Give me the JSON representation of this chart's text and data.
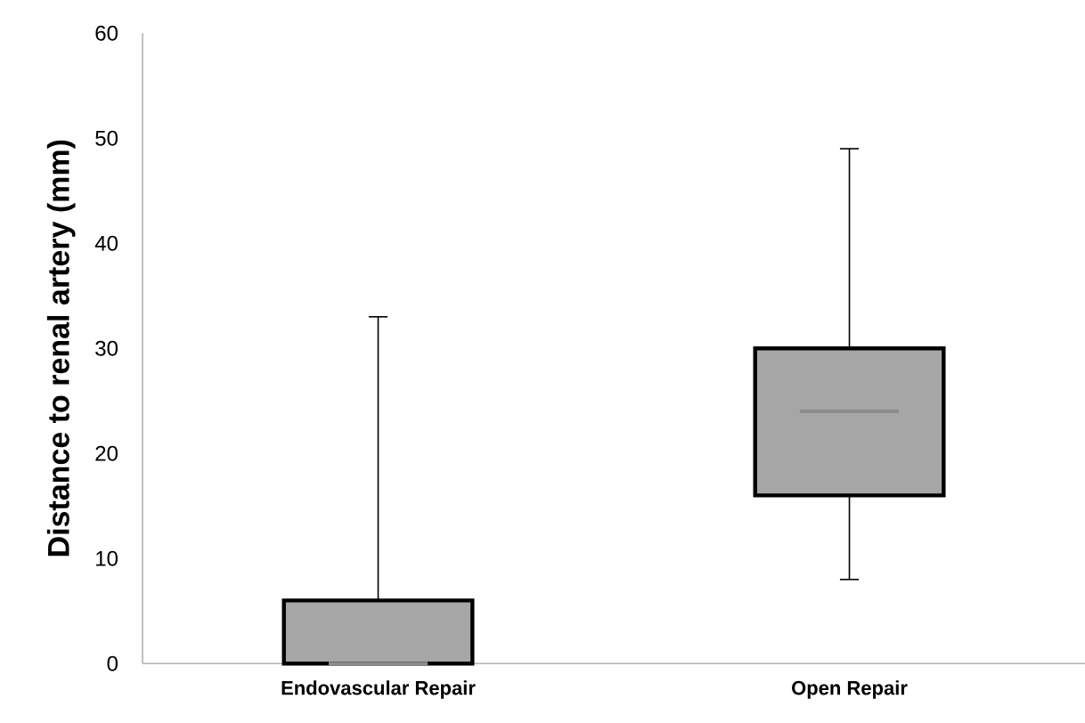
{
  "chart_data": {
    "type": "box",
    "ylabel": "Distance to renal artery (mm)",
    "categories": [
      "Endovascular Repair",
      "Open Repair"
    ],
    "color": "#a6a6a6",
    "boxes": [
      {
        "low": 0,
        "q1": 0,
        "median": 0,
        "q3": 6,
        "high": 33
      },
      {
        "low": 8,
        "q1": 16,
        "median": 24,
        "q3": 30,
        "high": 49
      }
    ],
    "ylim": [
      0,
      60
    ],
    "yticks": [
      0,
      10,
      20,
      30,
      40,
      50,
      60
    ]
  }
}
